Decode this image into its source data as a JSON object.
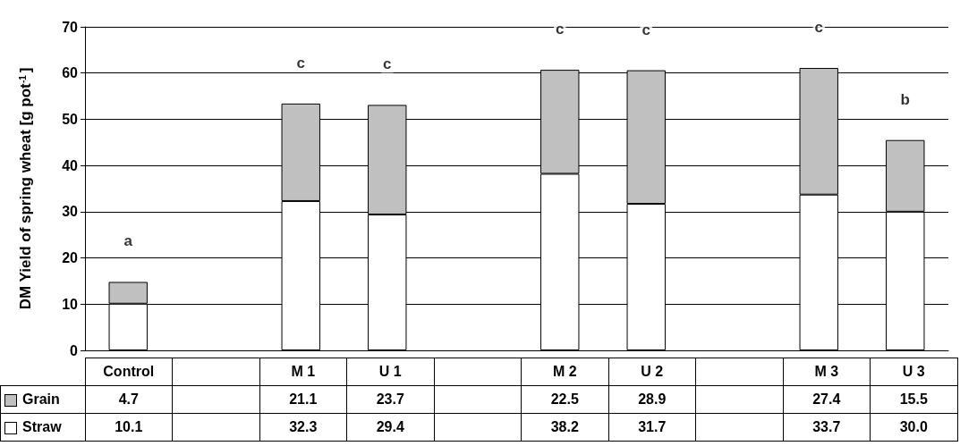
{
  "chart_data": {
    "type": "bar",
    "stacked": true,
    "ylabel": "DM Yield of spring wheat [g pot$^{-1}$]",
    "categories": [
      "Control",
      null,
      "M 1",
      "U 1",
      null,
      "M 2",
      "U 2",
      null,
      "M 3",
      "U 3"
    ],
    "series": [
      {
        "name": "Straw",
        "color": "#ffffff",
        "values": [
          10.1,
          null,
          32.3,
          29.4,
          null,
          38.2,
          31.7,
          null,
          33.7,
          30.0
        ],
        "value_labels": [
          "10.1",
          null,
          "32.3",
          "29.4",
          null,
          "38.2",
          "31.7",
          null,
          "33.7",
          "30.0"
        ]
      },
      {
        "name": "Grain",
        "color": "#c0c0c0",
        "values": [
          4.7,
          null,
          21.1,
          23.7,
          null,
          22.5,
          28.9,
          null,
          27.4,
          15.5
        ],
        "value_labels": [
          "4.7",
          null,
          "21.1",
          "23.7",
          null,
          "22.5",
          "28.9",
          null,
          "27.4",
          "15.5"
        ]
      }
    ],
    "legend": "bottom left",
    "ylim": [
      0,
      70
    ],
    "yticks": [
      0,
      10,
      20,
      30,
      40,
      50,
      60,
      70
    ],
    "grid": "y",
    "annotations": [
      {
        "text": "a",
        "x": "Control",
        "y": 14.8
      },
      {
        "text": "c",
        "x": "M 1",
        "y": 53.4
      },
      {
        "text": "c",
        "x": "U 1",
        "y": 53.1
      },
      {
        "text": "c",
        "x": "M 2",
        "y": 60.7
      },
      {
        "text": "c",
        "x": "U 2",
        "y": 60.6
      },
      {
        "text": "c",
        "x": "M 3",
        "y": 61.1
      },
      {
        "text": "b",
        "x": "U 3",
        "y": 45.5
      }
    ]
  }
}
